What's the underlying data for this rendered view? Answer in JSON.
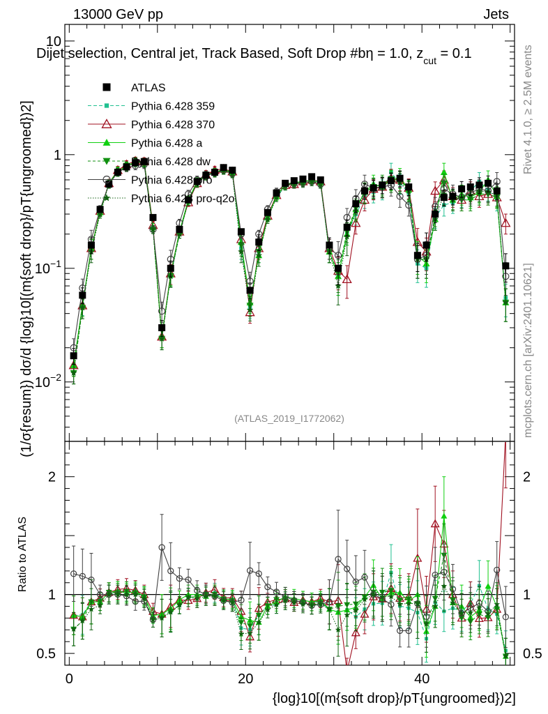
{
  "header": {
    "left": "13000 GeV pp",
    "right": "Jets"
  },
  "plot_title": "Dijet selection, Central jet, Track Based, Soft Drop #b",
  "plot_title_cut_html": "η = 1.0, z",
  "plot_title_cut_sub": "cut",
  "plot_title_cut_value": " = 0.1",
  "side_labels": {
    "rivet": "Rivet 4.1.0, ≥ 2.5M events",
    "mcplots": "mcplots.cern.ch [arXiv:2401.10621]"
  },
  "analysis_id": "(ATLAS_2019_I1772062)",
  "axes": {
    "main_ylabel": "(1/σ{resum}) dσ/d {log}10[(m{soft drop}/pT{ungroomed})2]",
    "ratio_ylabel": "Ratio to ATLAS",
    "xlabel": "{log}10[(m{soft drop}/pT{ungroomed})2]",
    "x_ticks": [
      "0",
      "20",
      "40"
    ],
    "main_y_ticks": [
      "10",
      "1",
      "10",
      "10"
    ],
    "main_y_tick_exps": [
      "",
      "",
      "−1",
      "−2"
    ],
    "ratio_y_ticks_left": [
      "2",
      "1",
      "0.5"
    ],
    "ratio_y_ticks_right": [
      "2",
      "1",
      "0.5"
    ]
  },
  "colors": {
    "atlas": "#000000",
    "p359": "#20c090",
    "p370": "#a01020",
    "pa": "#10d010",
    "pdw": "#109010",
    "ppro": "#404040",
    "pproq2o": "#106010"
  },
  "chart_data": {
    "type": "scatter",
    "x": [
      0.5,
      1.5,
      2.5,
      3.5,
      4.5,
      5.5,
      6.5,
      7.5,
      8.5,
      9.5,
      10.5,
      11.5,
      12.5,
      13.5,
      14.5,
      15.5,
      16.5,
      17.5,
      18.5,
      19.5,
      20.5,
      21.5,
      22.5,
      23.5,
      24.5,
      25.5,
      26.5,
      27.5,
      28.5,
      29.5,
      30.5,
      31.5,
      32.5,
      33.5,
      34.5,
      35.5,
      36.5,
      37.5,
      38.5,
      39.5,
      40.5,
      41.5,
      42.5,
      43.5,
      44.5,
      45.5,
      46.5,
      47.5,
      48.5,
      49.5
    ],
    "xlim": [
      -0.5,
      50.5
    ],
    "ylim": [
      0.003,
      14
    ],
    "ratio_ylim": [
      0.4,
      2.3
    ],
    "xlabel": "{log}10[(m{soft drop}/pT{ungroomed})2]",
    "ylabel": "(1/σ{resum}) dσ/d {log}10[(m{soft drop}/pT{ungroomed})2]",
    "title": "Dijet selection, Central jet, Track Based, Soft Drop #b",
    "legend_position": "top-left",
    "series": [
      {
        "name": "ATLAS",
        "key": "atlas",
        "values": [
          0.017,
          0.058,
          0.16,
          0.33,
          0.55,
          0.7,
          0.78,
          0.85,
          0.87,
          0.28,
          0.03,
          0.1,
          0.22,
          0.4,
          0.58,
          0.66,
          0.7,
          0.77,
          0.73,
          0.21,
          0.064,
          0.17,
          0.31,
          0.46,
          0.56,
          0.59,
          0.61,
          0.64,
          0.6,
          0.16,
          0.1,
          0.23,
          0.37,
          0.48,
          0.51,
          0.54,
          0.59,
          0.62,
          0.52,
          0.13,
          0.16,
          0.3,
          0.42,
          0.43,
          0.5,
          0.52,
          0.54,
          0.56,
          0.48,
          0.105
        ]
      },
      {
        "name": "Pythia 6.428 359",
        "key": "p359",
        "values": [
          0.014,
          0.048,
          0.15,
          0.32,
          0.55,
          0.72,
          0.8,
          0.88,
          0.86,
          0.23,
          0.025,
          0.085,
          0.2,
          0.39,
          0.57,
          0.67,
          0.71,
          0.74,
          0.7,
          0.15,
          0.045,
          0.14,
          0.28,
          0.42,
          0.53,
          0.56,
          0.57,
          0.6,
          0.56,
          0.14,
          0.085,
          0.2,
          0.3,
          0.42,
          0.47,
          0.5,
          0.7,
          0.56,
          0.46,
          0.11,
          0.1,
          0.28,
          0.36,
          0.38,
          0.43,
          0.48,
          0.58,
          0.49,
          0.4,
          0.055
        ]
      },
      {
        "name": "Pythia 6.428 370",
        "key": "p370",
        "values": [
          0.014,
          0.047,
          0.15,
          0.32,
          0.56,
          0.73,
          0.82,
          0.88,
          0.87,
          0.24,
          0.025,
          0.09,
          0.21,
          0.38,
          0.56,
          0.67,
          0.73,
          0.75,
          0.71,
          0.18,
          0.041,
          0.15,
          0.29,
          0.44,
          0.54,
          0.55,
          0.58,
          0.6,
          0.58,
          0.15,
          0.095,
          0.08,
          0.25,
          0.4,
          0.5,
          0.52,
          0.62,
          0.6,
          0.51,
          0.17,
          0.14,
          0.48,
          0.6,
          0.43,
          0.4,
          0.48,
          0.43,
          0.45,
          0.42,
          0.25
        ]
      },
      {
        "name": "Pythia 6.428 a",
        "key": "pa",
        "values": [
          0.014,
          0.047,
          0.15,
          0.31,
          0.56,
          0.72,
          0.79,
          0.87,
          0.86,
          0.23,
          0.025,
          0.088,
          0.21,
          0.4,
          0.58,
          0.65,
          0.7,
          0.74,
          0.7,
          0.17,
          0.05,
          0.13,
          0.28,
          0.43,
          0.55,
          0.57,
          0.58,
          0.6,
          0.57,
          0.14,
          0.085,
          0.2,
          0.33,
          0.47,
          0.55,
          0.52,
          0.6,
          0.63,
          0.49,
          0.13,
          0.11,
          0.27,
          0.7,
          0.4,
          0.45,
          0.42,
          0.47,
          0.6,
          0.43,
          0.05
        ]
      },
      {
        "name": "Pythia 6.428 dw",
        "key": "pdw",
        "values": [
          0.012,
          0.045,
          0.15,
          0.31,
          0.56,
          0.71,
          0.8,
          0.86,
          0.85,
          0.22,
          0.024,
          0.086,
          0.2,
          0.39,
          0.57,
          0.66,
          0.7,
          0.74,
          0.69,
          0.16,
          0.047,
          0.14,
          0.28,
          0.44,
          0.54,
          0.56,
          0.57,
          0.58,
          0.56,
          0.14,
          0.09,
          0.21,
          0.34,
          0.47,
          0.52,
          0.55,
          0.61,
          0.59,
          0.5,
          0.12,
          0.12,
          0.29,
          0.56,
          0.41,
          0.4,
          0.4,
          0.45,
          0.45,
          0.42,
          0.05
        ]
      },
      {
        "name": "Pythia 6.428 pro",
        "key": "ppro",
        "values": [
          0.02,
          0.067,
          0.18,
          0.33,
          0.55,
          0.7,
          0.77,
          0.8,
          0.82,
          0.22,
          0.042,
          0.12,
          0.25,
          0.45,
          0.6,
          0.66,
          0.69,
          0.73,
          0.68,
          0.2,
          0.077,
          0.2,
          0.33,
          0.47,
          0.55,
          0.56,
          0.57,
          0.58,
          0.55,
          0.15,
          0.13,
          0.28,
          0.41,
          0.55,
          0.51,
          0.52,
          0.54,
          0.43,
          0.36,
          0.12,
          0.13,
          0.35,
          0.5,
          0.45,
          0.42,
          0.46,
          0.5,
          0.48,
          0.58,
          0.085
        ]
      },
      {
        "name": "Pythia 6.428 pro-q2o",
        "key": "pproq2o",
        "values": [
          0.012,
          0.045,
          0.14,
          0.3,
          0.55,
          0.7,
          0.78,
          0.85,
          0.84,
          0.22,
          0.024,
          0.085,
          0.2,
          0.39,
          0.56,
          0.65,
          0.69,
          0.73,
          0.68,
          0.14,
          0.043,
          0.13,
          0.27,
          0.42,
          0.53,
          0.55,
          0.56,
          0.58,
          0.55,
          0.14,
          0.07,
          0.19,
          0.32,
          0.46,
          0.51,
          0.53,
          0.58,
          0.57,
          0.48,
          0.12,
          0.12,
          0.27,
          0.45,
          0.4,
          0.42,
          0.44,
          0.48,
          0.47,
          0.44,
          0.05
        ]
      }
    ]
  }
}
